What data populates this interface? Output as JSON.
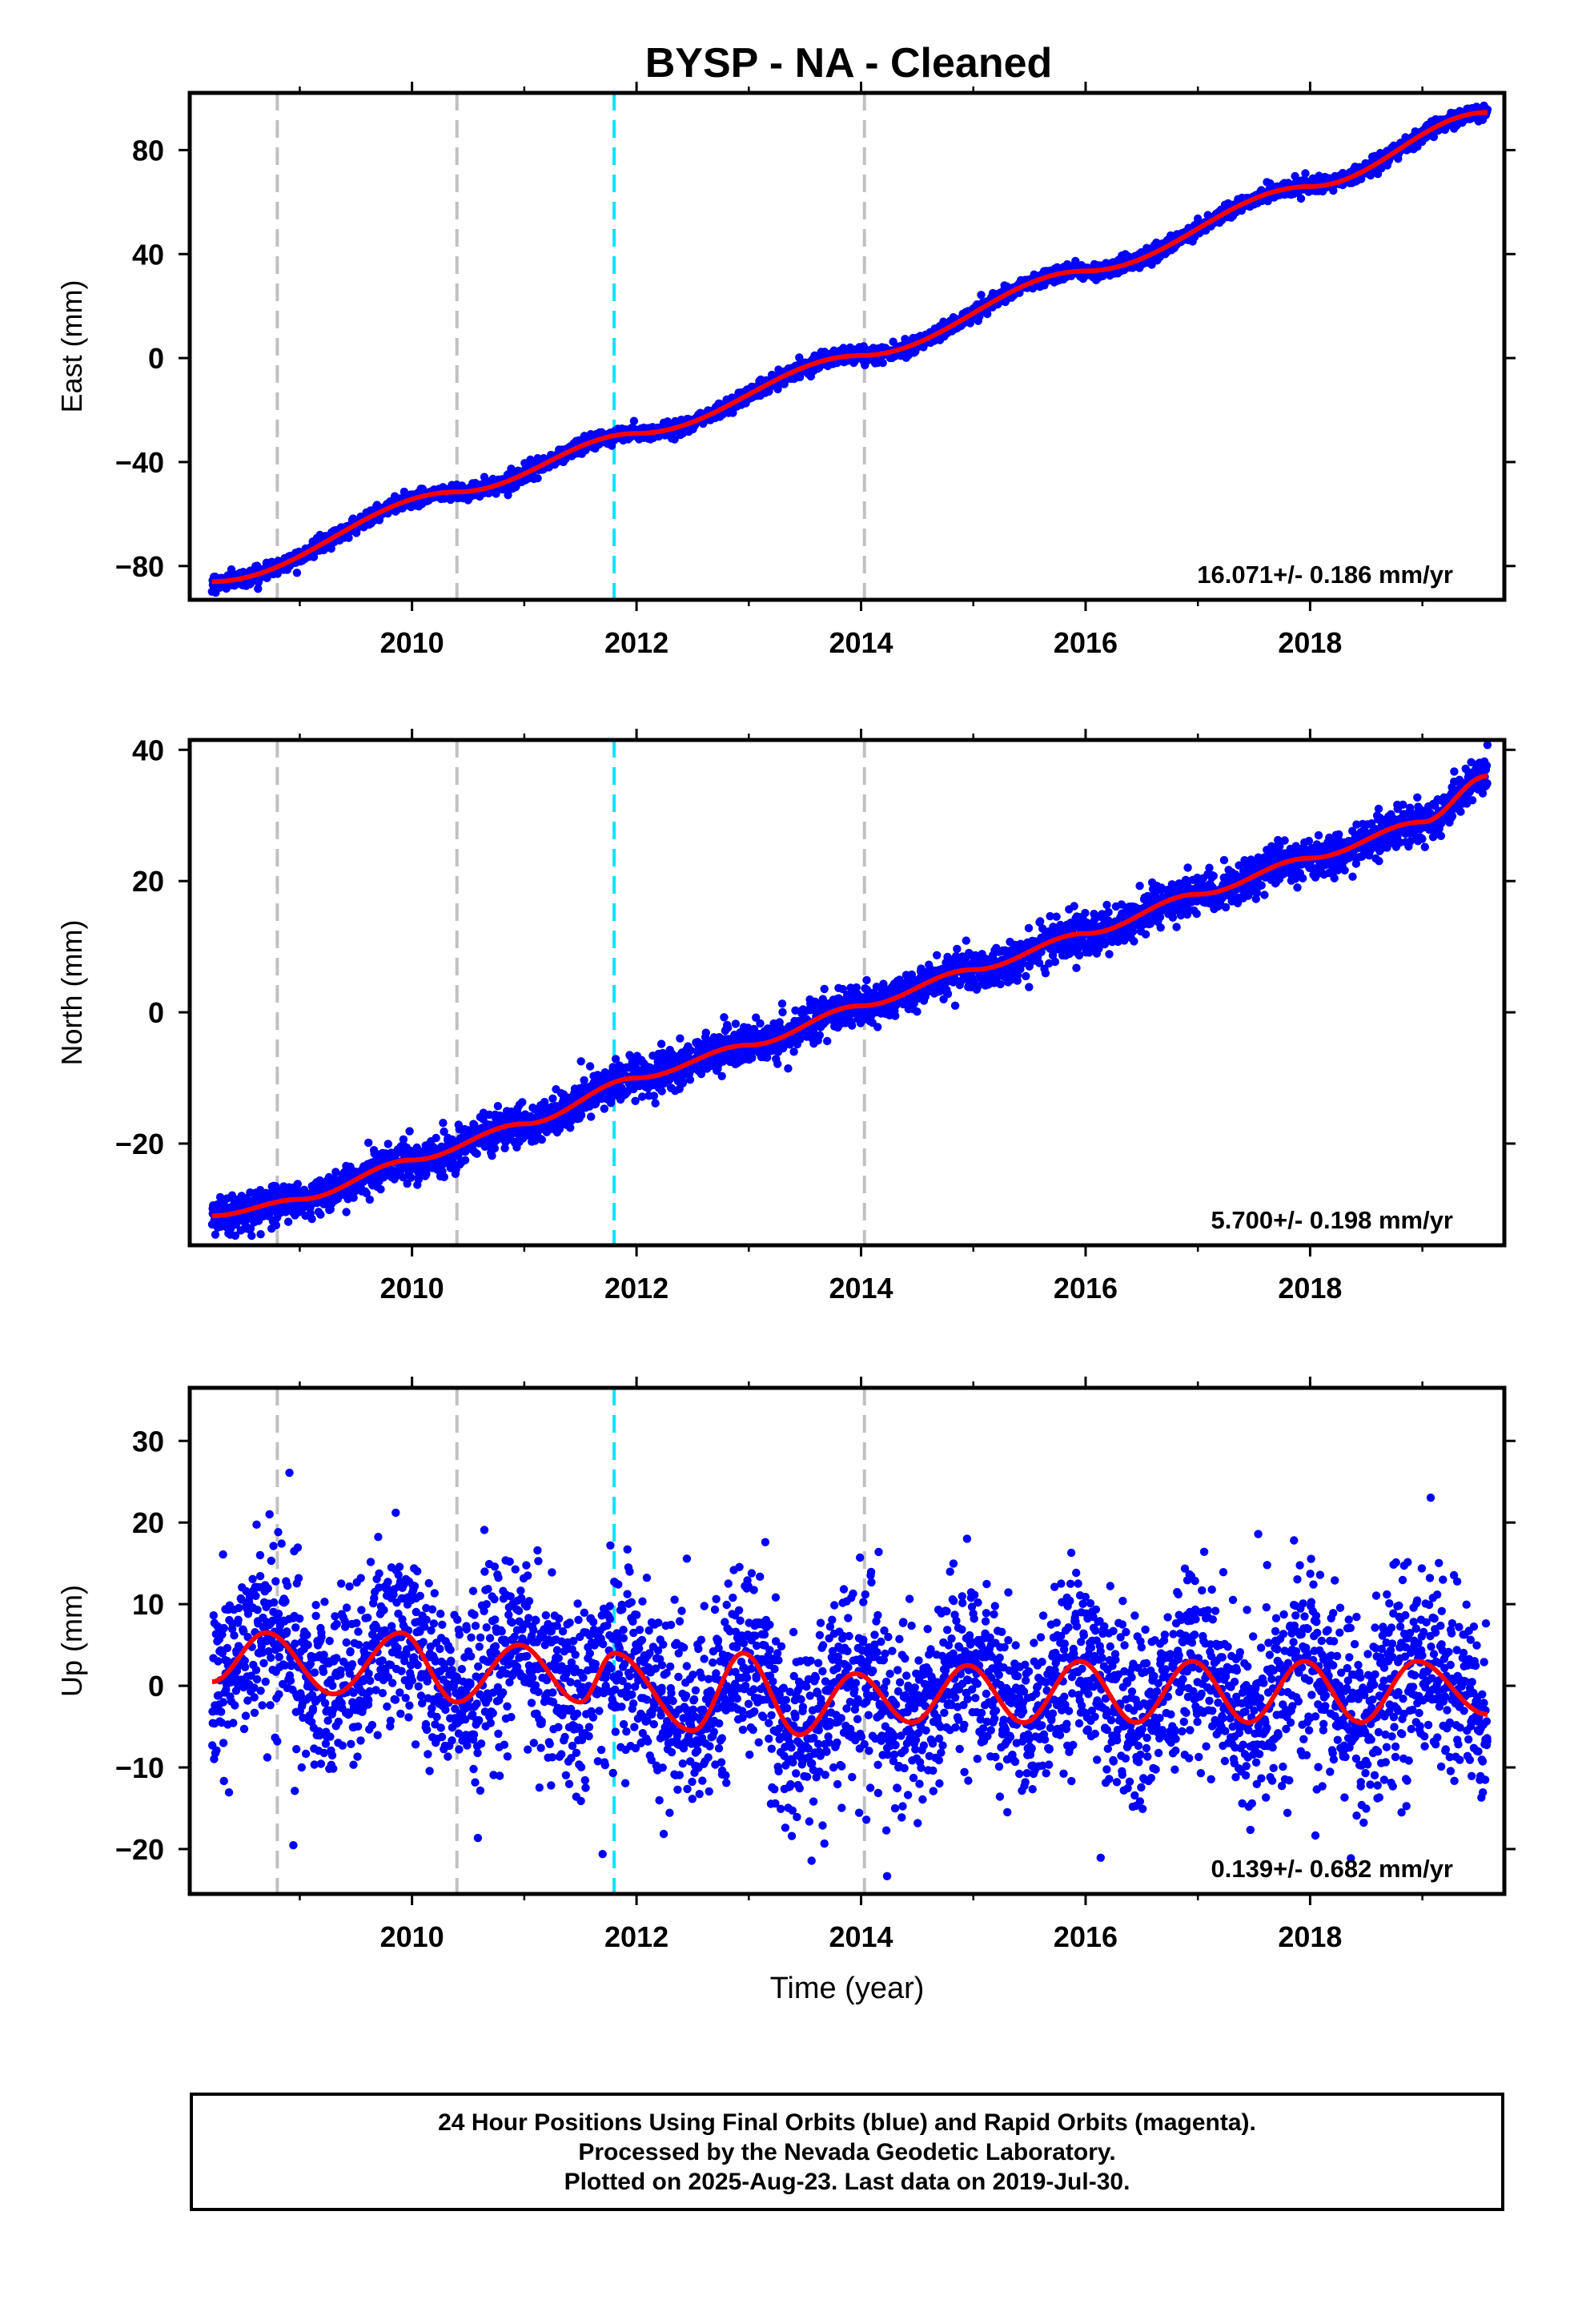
{
  "page_title": "BYSP  - NA - Cleaned",
  "xlabel": "Time (year)",
  "colors": {
    "points": "#0000ff",
    "fit": "#ff0000",
    "event_line_gray": "#c0c0c0",
    "event_line_cyan": "#00e5ff",
    "frame": "#000000"
  },
  "footer": {
    "line1": "24 Hour Positions Using Final Orbits (blue) and Rapid Orbits (magenta).",
    "line2": "Processed by the Nevada Geodetic Laboratory.",
    "line3": "Plotted on 2025-Aug-23. Last data on 2019-Jul-30."
  },
  "chart_data": [
    {
      "type": "scatter",
      "ylabel": "East (mm)",
      "rate_label": "16.071+/- 0.186 mm/yr",
      "xlim": [
        2008.02,
        2019.73
      ],
      "ylim": [
        -93,
        102
      ],
      "xticks": [
        2010,
        2012,
        2014,
        2016,
        2018
      ],
      "yticks": [
        -80,
        -40,
        0,
        40,
        80
      ],
      "event_lines": [
        {
          "x": 2008.8,
          "color": "gray"
        },
        {
          "x": 2010.4,
          "color": "gray"
        },
        {
          "x": 2011.8,
          "color": "cyan"
        },
        {
          "x": 2014.03,
          "color": "gray"
        }
      ],
      "x_start": 2008.22,
      "x_end": 2019.58,
      "series": [
        {
          "kind": "observations",
          "trend": {
            "intercept_at_2008_22": -86.0,
            "rate": 16.071
          },
          "seasonal_amplitude": 1.6,
          "scatter_sd": 1.4
        },
        {
          "kind": "fit_curve",
          "values_at": {
            "2008.22": -86.0,
            "2010.4": -51.5,
            "2012.0": -29.0,
            "2014.0": 1.0,
            "2016.0": 33.5,
            "2018.0": 66.0,
            "2019.58": 94.5
          }
        }
      ]
    },
    {
      "type": "scatter",
      "ylabel": "North (mm)",
      "rate_label": "5.700+/- 0.198 mm/yr",
      "xlim": [
        2008.02,
        2019.73
      ],
      "ylim": [
        -35.5,
        41.5
      ],
      "xticks": [
        2010,
        2012,
        2014,
        2016,
        2018
      ],
      "yticks": [
        -20,
        0,
        20,
        40
      ],
      "event_lines": [
        {
          "x": 2008.8,
          "color": "gray"
        },
        {
          "x": 2010.4,
          "color": "gray"
        },
        {
          "x": 2011.8,
          "color": "cyan"
        },
        {
          "x": 2014.03,
          "color": "gray"
        }
      ],
      "x_start": 2008.22,
      "x_end": 2019.58,
      "series": [
        {
          "kind": "observations",
          "trend": {
            "intercept_at_2008_22": -31.0,
            "rate": 5.7
          },
          "seasonal_amplitude": 2.4,
          "scatter_sd": 1.5
        },
        {
          "kind": "fit_curve",
          "values_at": {
            "2008.22": -31.0,
            "2009.0": -28.5,
            "2010.0": -22.5,
            "2011.0": -17.0,
            "2012.0": -10.0,
            "2013.0": -5.0,
            "2014.0": 1.0,
            "2015.0": 6.5,
            "2016.0": 12.0,
            "2017.0": 18.0,
            "2018.0": 23.5,
            "2019.0": 29.0,
            "2019.58": 36.0
          }
        }
      ]
    },
    {
      "type": "scatter",
      "ylabel": "Up (mm)",
      "rate_label": "0.139+/- 0.682 mm/yr",
      "xlim": [
        2008.02,
        2019.73
      ],
      "ylim": [
        -25.5,
        36.5
      ],
      "xticks": [
        2010,
        2012,
        2014,
        2016,
        2018
      ],
      "yticks": [
        -20,
        -10,
        0,
        10,
        20,
        30
      ],
      "event_lines": [
        {
          "x": 2008.8,
          "color": "gray"
        },
        {
          "x": 2010.4,
          "color": "gray"
        },
        {
          "x": 2011.8,
          "color": "cyan"
        },
        {
          "x": 2014.03,
          "color": "gray"
        }
      ],
      "x_start": 2008.22,
      "x_end": 2019.58,
      "series": [
        {
          "kind": "observations",
          "trend": {
            "intercept_at_2008_22": 0.5,
            "rate": 0.139
          },
          "seasonal_amplitude": 5.0,
          "scatter_sd": 5.5
        },
        {
          "kind": "fit_curve",
          "values_at": {
            "2008.22": 0.5,
            "2008.7": 6.5,
            "2009.3": -1.0,
            "2009.9": 6.5,
            "2010.4": -2.0,
            "2010.95": 5.0,
            "2011.5": -2.0,
            "2011.8": 4.0,
            "2012.5": -5.5,
            "2012.95": 4.0,
            "2013.45": -6.0,
            "2013.95": 1.5,
            "2014.45": -4.5,
            "2014.95": 2.5,
            "2015.45": -4.5,
            "2015.95": 3.0,
            "2016.45": -4.5,
            "2016.95": 3.0,
            "2017.45": -4.5,
            "2017.95": 3.0,
            "2018.45": -4.5,
            "2018.95": 3.0,
            "2019.58": -3.5
          }
        }
      ]
    }
  ]
}
